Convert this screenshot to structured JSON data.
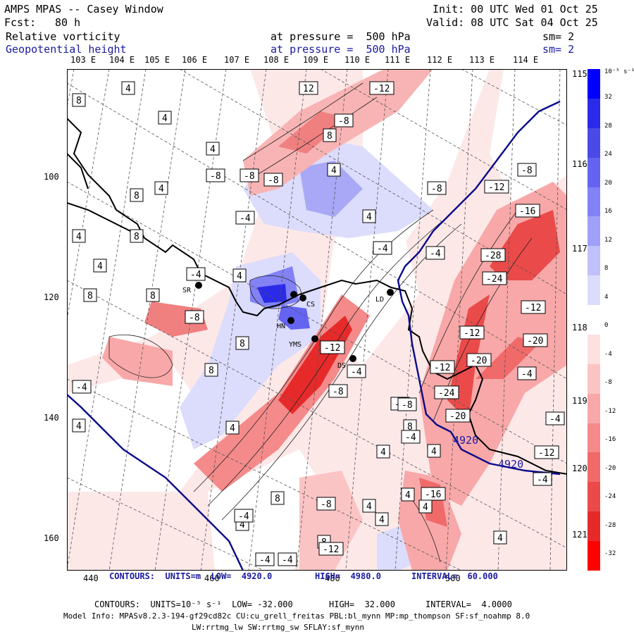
{
  "header": {
    "title": "AMPS MPAS -- Casey Window",
    "init": "Init: 00 UTC Wed 01 Oct 25",
    "fcst_label": "Fcst:",
    "fcst_value": "80 h",
    "valid": "Valid: 08 UTC Sat 04 Oct 25",
    "field1": "Relative vorticity",
    "field1_level": "at pressure =  500 hPa",
    "field1_sm": "sm= 2",
    "field2": "Geopotential height",
    "field2_level": "at pressure =  500 hPa",
    "field2_sm": "sm= 2"
  },
  "lon_labels_top": [
    "103 E",
    "104 E",
    "105 E",
    "106 E",
    "107 E",
    "108 E",
    "109 E",
    "110 E",
    "111 E",
    "112 E",
    "113 E",
    "114 E"
  ],
  "lon_labels_right": [
    "115 E",
    "116 E",
    "117 E",
    "118 E",
    "119 E",
    "120 E",
    "121 E"
  ],
  "x_ticks": [
    "440",
    "460",
    "480",
    "500"
  ],
  "y_ticks": [
    "100",
    "120",
    "140",
    "160"
  ],
  "colorbar": {
    "unit": "10⁻⁵ s⁻¹",
    "labels": [
      "32",
      "28",
      "24",
      "20",
      "16",
      "12",
      "8",
      "4",
      "0",
      "-4",
      "-8",
      "-12",
      "-16",
      "-20",
      "-24",
      "-28",
      "-32"
    ],
    "colors": [
      "#0000ff",
      "#2a2ae8",
      "#4a4ae6",
      "#6464f0",
      "#8282f5",
      "#a0a0f8",
      "#c0c0fa",
      "#dcdcfc",
      "#ffffff",
      "#fde0e0",
      "#fbc4c4",
      "#f8a8a8",
      "#f58a8a",
      "#f06a6a",
      "#eb4a4a",
      "#e62a2a",
      "#ff0000"
    ]
  },
  "stations": [
    {
      "label": "SR"
    },
    {
      "label": "CS"
    },
    {
      "label": "HN"
    },
    {
      "label": "YMS"
    },
    {
      "label": "LD"
    },
    {
      "label": "DS"
    }
  ],
  "contour_labels": {
    "positive": [
      "8",
      "4",
      "4",
      "4",
      "4",
      "8",
      "8",
      "4",
      "4",
      "8",
      "8",
      "12",
      "8",
      "4",
      "8",
      "4",
      "4",
      "4",
      "4",
      "4",
      "8",
      "4",
      "4",
      "4",
      "8",
      "4",
      "4",
      "4",
      "8",
      "4",
      "4",
      "8"
    ],
    "negative": [
      "-12",
      "-8",
      "-8",
      "-8",
      "-8",
      "-4",
      "-4",
      "-4",
      "-4",
      "-8",
      "-8",
      "-12",
      "-16",
      "-28",
      "-24",
      "-12",
      "-12",
      "-20",
      "-20",
      "-12",
      "-4",
      "-24",
      "-20",
      "-8",
      "-4",
      "-8",
      "-12",
      "-4",
      "-16",
      "-8",
      "-12",
      "-4",
      "-4",
      "-4",
      "-4",
      "-8",
      "-4",
      "-4",
      "-4",
      "-12"
    ],
    "height": [
      "4920",
      "4920"
    ]
  },
  "footer": {
    "line1_label": "CONTOURS:  UNITS=m  LOW=  4920.0",
    "line1_high": "HIGH=  4980.0",
    "line1_interval": "INTERVAL=  60.000",
    "line2_label": "CONTOURS:  UNITS=10⁻⁵ s⁻¹  LOW= -32.000",
    "line2_high": "HIGH=  32.000",
    "line2_interval": "INTERVAL=  4.0000",
    "line3": "Model Info: MPASv8.2.3-194-gf29cd82c CU:cu_grell_freitas PBL:bl_mynn MP:mp_thompson SF:sf_noahmp 8.0",
    "line4": "LW:rrtmg_lw SW:rrtmg_sw SFLAY:sf_mynn"
  }
}
